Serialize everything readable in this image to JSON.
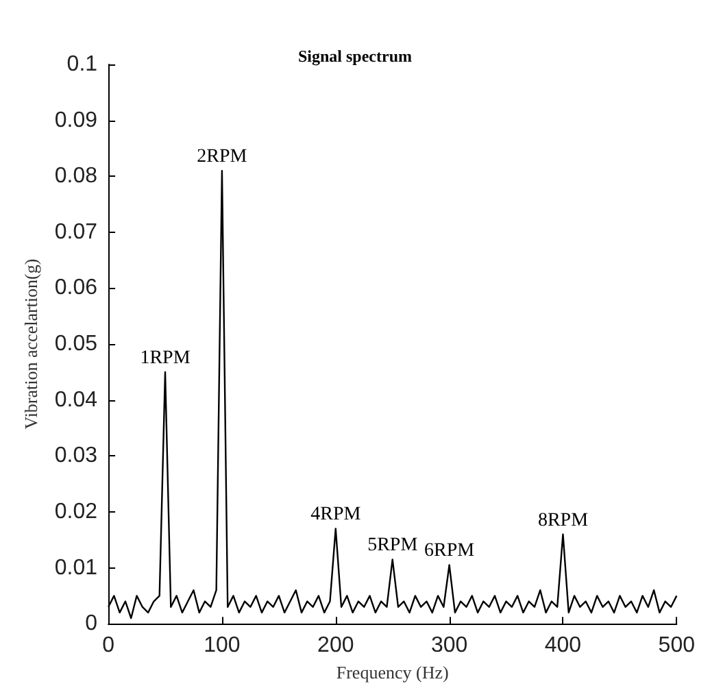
{
  "chart_data": {
    "type": "line",
    "title": "Signal spectrum",
    "xlabel": "Frequency (Hz)",
    "ylabel": "Vibration accelartion(g)",
    "x": [
      0,
      5,
      10,
      15,
      20,
      25,
      30,
      35,
      40,
      45,
      50,
      55,
      60,
      65,
      70,
      75,
      80,
      85,
      90,
      95,
      100,
      105,
      110,
      115,
      120,
      125,
      130,
      135,
      140,
      145,
      150,
      155,
      160,
      165,
      170,
      175,
      180,
      185,
      190,
      195,
      200,
      205,
      210,
      215,
      220,
      225,
      230,
      235,
      240,
      245,
      250,
      255,
      260,
      265,
      270,
      275,
      280,
      285,
      290,
      295,
      300,
      305,
      310,
      315,
      320,
      325,
      330,
      335,
      340,
      345,
      350,
      355,
      360,
      365,
      370,
      375,
      380,
      385,
      390,
      395,
      400,
      405,
      410,
      415,
      420,
      425,
      430,
      435,
      440,
      445,
      450,
      455,
      460,
      465,
      470,
      475,
      480,
      485,
      490,
      495,
      500
    ],
    "series": [
      {
        "color": "#000000",
        "values": [
          0.003,
          0.005,
          0.002,
          0.004,
          0.001,
          0.005,
          0.003,
          0.002,
          0.004,
          0.005,
          0.045,
          0.003,
          0.005,
          0.002,
          0.004,
          0.006,
          0.002,
          0.004,
          0.003,
          0.006,
          0.081,
          0.003,
          0.005,
          0.002,
          0.004,
          0.003,
          0.005,
          0.002,
          0.004,
          0.003,
          0.005,
          0.002,
          0.004,
          0.006,
          0.002,
          0.004,
          0.003,
          0.005,
          0.002,
          0.004,
          0.017,
          0.003,
          0.005,
          0.002,
          0.004,
          0.003,
          0.005,
          0.002,
          0.004,
          0.003,
          0.0115,
          0.003,
          0.004,
          0.002,
          0.005,
          0.003,
          0.004,
          0.002,
          0.005,
          0.003,
          0.0105,
          0.002,
          0.004,
          0.003,
          0.005,
          0.002,
          0.004,
          0.003,
          0.005,
          0.002,
          0.004,
          0.003,
          0.005,
          0.002,
          0.004,
          0.003,
          0.006,
          0.002,
          0.004,
          0.003,
          0.016,
          0.002,
          0.005,
          0.003,
          0.004,
          0.002,
          0.005,
          0.003,
          0.004,
          0.002,
          0.005,
          0.003,
          0.004,
          0.002,
          0.005,
          0.003,
          0.006,
          0.002,
          0.004,
          0.003,
          0.005
        ]
      }
    ],
    "xlim": [
      0,
      500
    ],
    "xticks": [
      0,
      100,
      200,
      300,
      400,
      500
    ],
    "ylim": [
      0,
      0.1
    ],
    "yticks": [
      0,
      0.01,
      0.02,
      0.03,
      0.04,
      0.05,
      0.06,
      0.07,
      0.08,
      0.09,
      0.1
    ],
    "grid": false,
    "marker": "none",
    "line_style": "solid",
    "annotations": [
      {
        "text": "1RPM",
        "x": 50,
        "y": 0.045
      },
      {
        "text": "2RPM",
        "x": 100,
        "y": 0.081
      },
      {
        "text": "4RPM",
        "x": 200,
        "y": 0.017
      },
      {
        "text": "5RPM",
        "x": 250,
        "y": 0.0115
      },
      {
        "text": "6RPM",
        "x": 300,
        "y": 0.0105
      },
      {
        "text": "8RPM",
        "x": 400,
        "y": 0.016
      }
    ]
  }
}
